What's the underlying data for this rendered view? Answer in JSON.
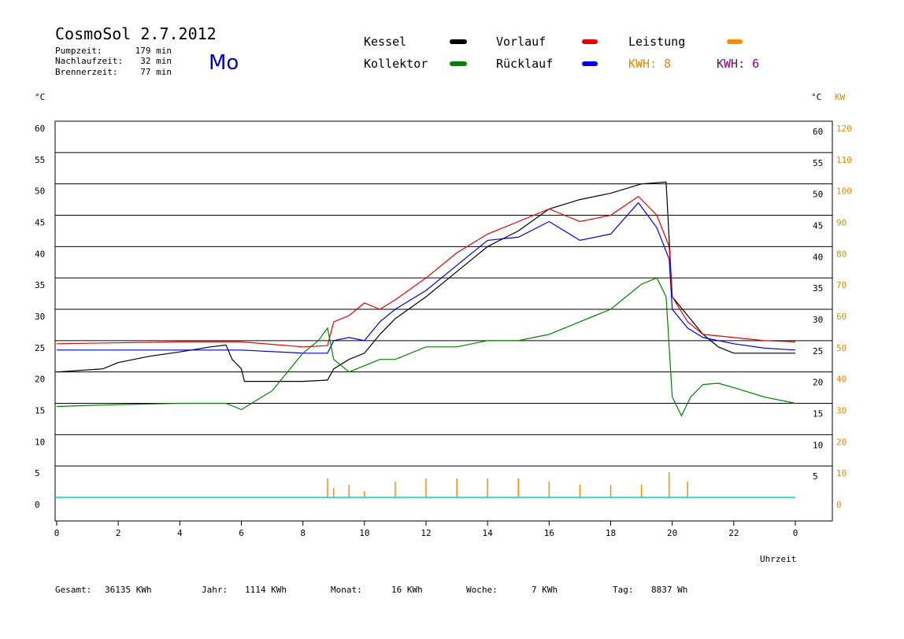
{
  "header": {
    "title": "CosmoSol 2.7.2012",
    "day": "Mo",
    "stats": [
      {
        "label": "Pumpzeit:",
        "value": "179 min"
      },
      {
        "label": "Nachlaufzeit:",
        "value": "32 min"
      },
      {
        "label": "Brennerzeit:",
        "value": "77 min"
      }
    ]
  },
  "legend": {
    "items": [
      {
        "label": "Kessel",
        "color": "#000000"
      },
      {
        "label": "Kollektor",
        "color": "#008000"
      },
      {
        "label": "Vorlauf",
        "color": "#e00000"
      },
      {
        "label": "Rücklauf",
        "color": "#0000e0"
      },
      {
        "label": "Leistung",
        "color": "#ff8c00"
      }
    ],
    "kwh_orange": "KWH: 8",
    "kwh_purple": "KWH: 6",
    "kwh_orange_color": "#e08a00",
    "kwh_purple_color": "#800080"
  },
  "axes": {
    "left_unit": "°C",
    "right_unit": "°C",
    "right_power_unit": "KW",
    "x_label": "Uhrzeit"
  },
  "footer": [
    {
      "label": "Gesamt:",
      "value": "36135 KWh"
    },
    {
      "label": "Jahr:",
      "value": "1114 KWh"
    },
    {
      "label": "Monat:",
      "value": "16 KWh"
    },
    {
      "label": "Woche:",
      "value": "7 KWh"
    },
    {
      "label": "Tag:",
      "value": "8837 Wh"
    }
  ],
  "chart_data": {
    "type": "line",
    "title": "CosmoSol 2.7.2012",
    "xlabel": "Uhrzeit",
    "ylabel": "°C",
    "xlim": [
      0,
      24
    ],
    "ylim": [
      0,
      60
    ],
    "y2lim": [
      0,
      120
    ],
    "y2label": "KW",
    "grid": true,
    "x_ticks": [
      "0",
      "2",
      "4",
      "6",
      "8",
      "10",
      "12",
      "14",
      "16",
      "18",
      "20",
      "22",
      "0"
    ],
    "y_ticks": [
      "0",
      "5",
      "10",
      "15",
      "20",
      "25",
      "30",
      "35",
      "40",
      "45",
      "50",
      "55",
      "60"
    ],
    "y2_ticks": [
      "0",
      "10",
      "20",
      "30",
      "40",
      "50",
      "60",
      "70",
      "80",
      "90",
      "100",
      "110",
      "120"
    ],
    "series": [
      {
        "name": "Kessel",
        "color": "#000000",
        "x": [
          0,
          1.5,
          2,
          3,
          4,
          5,
          5.5,
          5.7,
          6,
          6.1,
          7,
          8,
          8.8,
          9,
          9.5,
          10,
          10.5,
          11,
          12,
          13,
          14,
          15,
          16,
          17,
          18,
          19,
          19.8,
          20,
          20.5,
          21,
          21.5,
          22,
          23,
          24
        ],
        "y": [
          20,
          20.5,
          21.5,
          22.5,
          23.2,
          24,
          24.3,
          22,
          20.5,
          18.5,
          18.5,
          18.5,
          18.7,
          20.5,
          22,
          23,
          26,
          28.5,
          32,
          36,
          40,
          42.5,
          46,
          47.5,
          48.5,
          50,
          50.3,
          32,
          29,
          26,
          24,
          23,
          23,
          23
        ]
      },
      {
        "name": "Vorlauf",
        "color": "#e00000",
        "x": [
          0,
          4,
          6,
          8,
          8.8,
          9,
          9.5,
          10,
          10.5,
          11,
          12,
          13,
          14,
          15,
          16,
          17,
          18,
          18.9,
          19.5,
          19.9,
          20,
          20.5,
          21,
          22,
          23,
          24
        ],
        "y": [
          24.5,
          24.8,
          24.8,
          24,
          24.2,
          28,
          29,
          31,
          30,
          31.5,
          35,
          39,
          42,
          44,
          46,
          44,
          45,
          48,
          45,
          40,
          32,
          28,
          26,
          25.5,
          25,
          24.8
        ]
      },
      {
        "name": "Rücklauf",
        "color": "#0000e0",
        "x": [
          0,
          4,
          6,
          8,
          8.8,
          9,
          9.5,
          10,
          10.5,
          11,
          12,
          13,
          14,
          15,
          16,
          17,
          18,
          18.9,
          19.5,
          19.9,
          20,
          20.5,
          21,
          22,
          23,
          24
        ],
        "y": [
          23.5,
          23.5,
          23.5,
          23,
          23,
          25,
          25.5,
          25,
          28,
          30,
          33,
          37,
          41,
          41.5,
          44,
          41,
          42,
          47,
          43,
          38,
          30,
          27,
          25.5,
          24.5,
          23.8,
          23.5
        ]
      },
      {
        "name": "Kollektor",
        "color": "#008000",
        "x": [
          0,
          2,
          4,
          5.5,
          6,
          6.5,
          7,
          7.5,
          8,
          8.5,
          8.8,
          9,
          9.5,
          10,
          10.5,
          11,
          12,
          13,
          14,
          15,
          16,
          17,
          18,
          19,
          19.5,
          19.8,
          20,
          20.3,
          20.6,
          21,
          21.5,
          22,
          23,
          24
        ],
        "y": [
          14.5,
          14.8,
          15,
          15,
          14,
          15.5,
          17,
          20,
          23,
          25,
          27,
          22,
          20,
          21,
          22,
          22,
          24,
          24,
          25,
          25,
          26,
          28,
          30,
          34,
          35,
          32,
          16,
          13,
          16,
          18,
          18.2,
          17.5,
          16,
          15
        ]
      },
      {
        "name": "Leistung",
        "color": "#ff8c00",
        "axis": "KW",
        "x": [
          8.8,
          9,
          9.5,
          10,
          11,
          12,
          13,
          14,
          15,
          16,
          17,
          18,
          19,
          19.9,
          20.5
        ],
        "y": [
          6,
          3,
          4,
          2,
          5,
          6,
          6,
          6,
          6,
          5,
          4,
          4,
          4,
          8,
          5
        ]
      }
    ]
  }
}
